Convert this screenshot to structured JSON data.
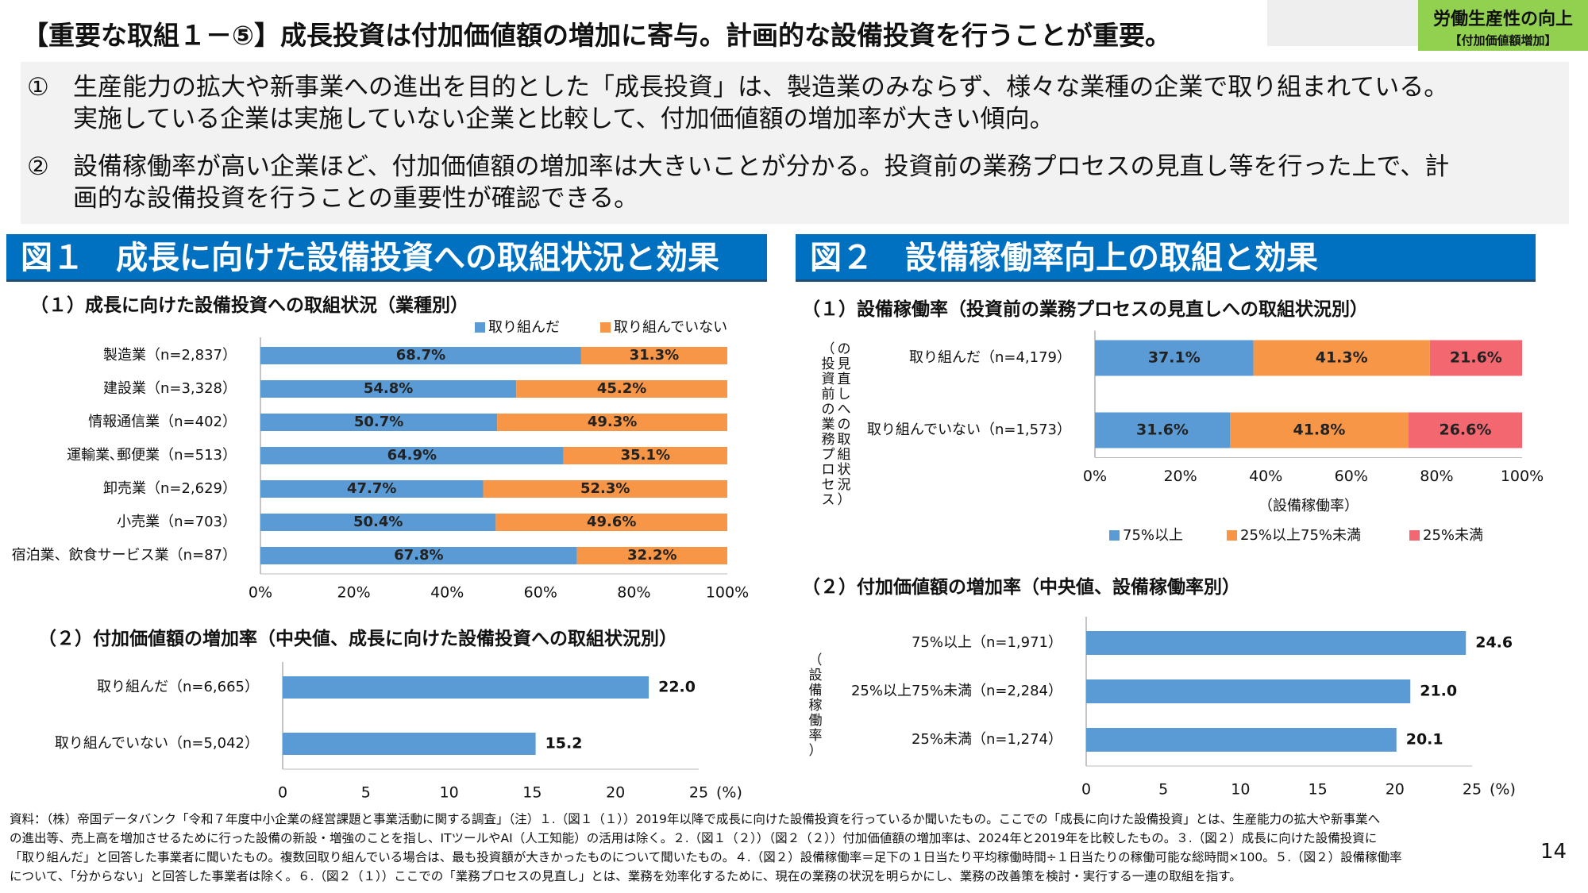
{
  "header": {
    "title": "【重要な取組１－⑤】成長投資は付加価値額の増加に寄与。計画的な設備投資を行うことが重要。",
    "tag_line1": "労働生産性の向上",
    "tag_line2": "【付加価値額増加】"
  },
  "summary": {
    "p1_num": "①",
    "p1_line1": "生産能力の拡大や新事業への進出を目的とした「成長投資」は、製造業のみならず、様々な業種の企業で取り組まれている。",
    "p1_line2": "実施している企業は実施していない企業と比較して、付加価値額の増加率が大きい傾向。",
    "p2_num": "②",
    "p2_line1": "設備稼働率が高い企業ほど、付加価値額の増加率は大きいことが分かる。投資前の業務プロセスの見直し等を行った上で、計",
    "p2_line2": "画的な設備投資を行うことの重要性が確認できる。"
  },
  "fig1": {
    "heading": "図１　成長に向けた設備投資への取組状況と効果",
    "sub1": "（１）成長に向けた設備投資への取組状況（業種別）",
    "sub2": "（２）付加価値額の増加率（中央値、成長に向けた設備投資への取組状況別）"
  },
  "fig2": {
    "heading": "図２　設備稼働率向上の取組と効果",
    "sub1": "（１）設備稼働率（投資前の業務プロセスの見直しへの取組状況別）",
    "sub2": "（２）付加価値額の増加率（中央値、設備稼働率別）"
  },
  "colors": {
    "blue": "#5b9bd5",
    "orange": "#f79646",
    "red": "#f36770",
    "title_blue": "#0070c0",
    "tag_green": "#92d050"
  },
  "chart_data": [
    {
      "id": "fig1-1",
      "type": "bar",
      "stacked": true,
      "orientation": "horizontal",
      "categories": [
        "製造業（n=2,837）",
        "建設業（n=3,328）",
        "情報通信業（n=402）",
        "運輸業､郵便業（n=513）",
        "卸売業（n=2,629）",
        "小売業（n=703）",
        "宿泊業、飲食サービス業（n=87）"
      ],
      "series": [
        {
          "name": "取り組んだ",
          "values": [
            68.7,
            54.8,
            50.7,
            64.9,
            47.7,
            50.4,
            67.8
          ],
          "labels": [
            "68.7%",
            "54.8%",
            "50.7%",
            "64.9%",
            "47.7%",
            "50.4%",
            "67.8%"
          ]
        },
        {
          "name": "取り組んでいない",
          "values": [
            31.3,
            45.2,
            49.3,
            35.1,
            52.3,
            49.6,
            32.2
          ],
          "labels": [
            "31.3%",
            "45.2%",
            "49.3%",
            "35.1%",
            "52.3%",
            "49.6%",
            "32.2%"
          ]
        }
      ],
      "xlim": [
        0,
        100
      ],
      "xticks": [
        "0%",
        "20%",
        "40%",
        "60%",
        "80%",
        "100%"
      ],
      "legend_position": "top-right"
    },
    {
      "id": "fig1-2",
      "type": "bar",
      "orientation": "horizontal",
      "categories": [
        "取り組んだ（n=6,665）",
        "取り組んでいない（n=5,042）"
      ],
      "values": [
        22.0,
        15.2
      ],
      "labels": [
        "22.0",
        "15.2"
      ],
      "xlim": [
        0,
        25
      ],
      "xticks": [
        "0",
        "5",
        "10",
        "15",
        "20",
        "25"
      ],
      "unit": "(%)"
    },
    {
      "id": "fig2-1",
      "type": "bar",
      "stacked": true,
      "orientation": "horizontal",
      "categories": [
        "取り組んだ（n=4,179）",
        "取り組んでいない（n=1,573）"
      ],
      "series": [
        {
          "name": "75%以上",
          "values": [
            37.1,
            31.6
          ],
          "labels": [
            "37.1%",
            "31.6%"
          ]
        },
        {
          "name": "25%以上75%未満",
          "values": [
            41.3,
            41.8
          ],
          "labels": [
            "41.3%",
            "41.8%"
          ]
        },
        {
          "name": "25%未満",
          "values": [
            21.6,
            26.6
          ],
          "labels": [
            "21.6%",
            "26.6%"
          ]
        }
      ],
      "xlim": [
        0,
        100
      ],
      "xticks": [
        "0%",
        "20%",
        "40%",
        "60%",
        "80%",
        "100%"
      ],
      "xlabel": "（設備稼働率）",
      "ylabel": "（投資前の業務プロセスの見直しへの取組状況）",
      "legend_position": "bottom"
    },
    {
      "id": "fig2-2",
      "type": "bar",
      "orientation": "horizontal",
      "categories": [
        "75%以上（n=1,971）",
        "25%以上75%未満（n=2,284）",
        "25%未満（n=1,274）"
      ],
      "values": [
        24.6,
        21.0,
        20.1
      ],
      "labels": [
        "24.6",
        "21.0",
        "20.1"
      ],
      "xlim": [
        0,
        25
      ],
      "xticks": [
        "0",
        "5",
        "10",
        "15",
        "20",
        "25"
      ],
      "unit": "(%)",
      "ylabel": "（設備稼働率）"
    }
  ],
  "notes": {
    "line1": "資料：（株）帝国データバンク「令和７年度中小企業の経営課題と事業活動に関する調査」（注）１.（図１（１））2019年以降で成長に向けた設備投資を行っているか聞いたもの。ここでの「成長に向けた設備投資」とは、生産能力の拡大や新事業へ",
    "line2": "の進出等、売上高を増加させるために行った設備の新設・増強のことを指し、ITツールやAI（人工知能）の活用は除く。２.（図１（２））（図２（２））付加価値額の増加率は、2024年と2019年を比較したもの。３.（図２）成長に向けた設備投資に",
    "line3": "「取り組んだ」と回答した事業者に聞いたもの。複数回取り組んでいる場合は、最も投資額が大きかったものについて聞いたもの。４.（図２）設備稼働率＝足下の１日当たり平均稼働時間÷１日当たりの稼働可能な総時間×100。５.（図２）設備稼働率",
    "line4": "について、「分からない」と回答した事業者は除く。６.（図２（１））ここでの「業務プロセスの見直し」とは、業務を効率化するために、現在の業務の状況を明らかにし、業務の改善策を検討・実行する一連の取組を指す。"
  },
  "page_number": "14"
}
